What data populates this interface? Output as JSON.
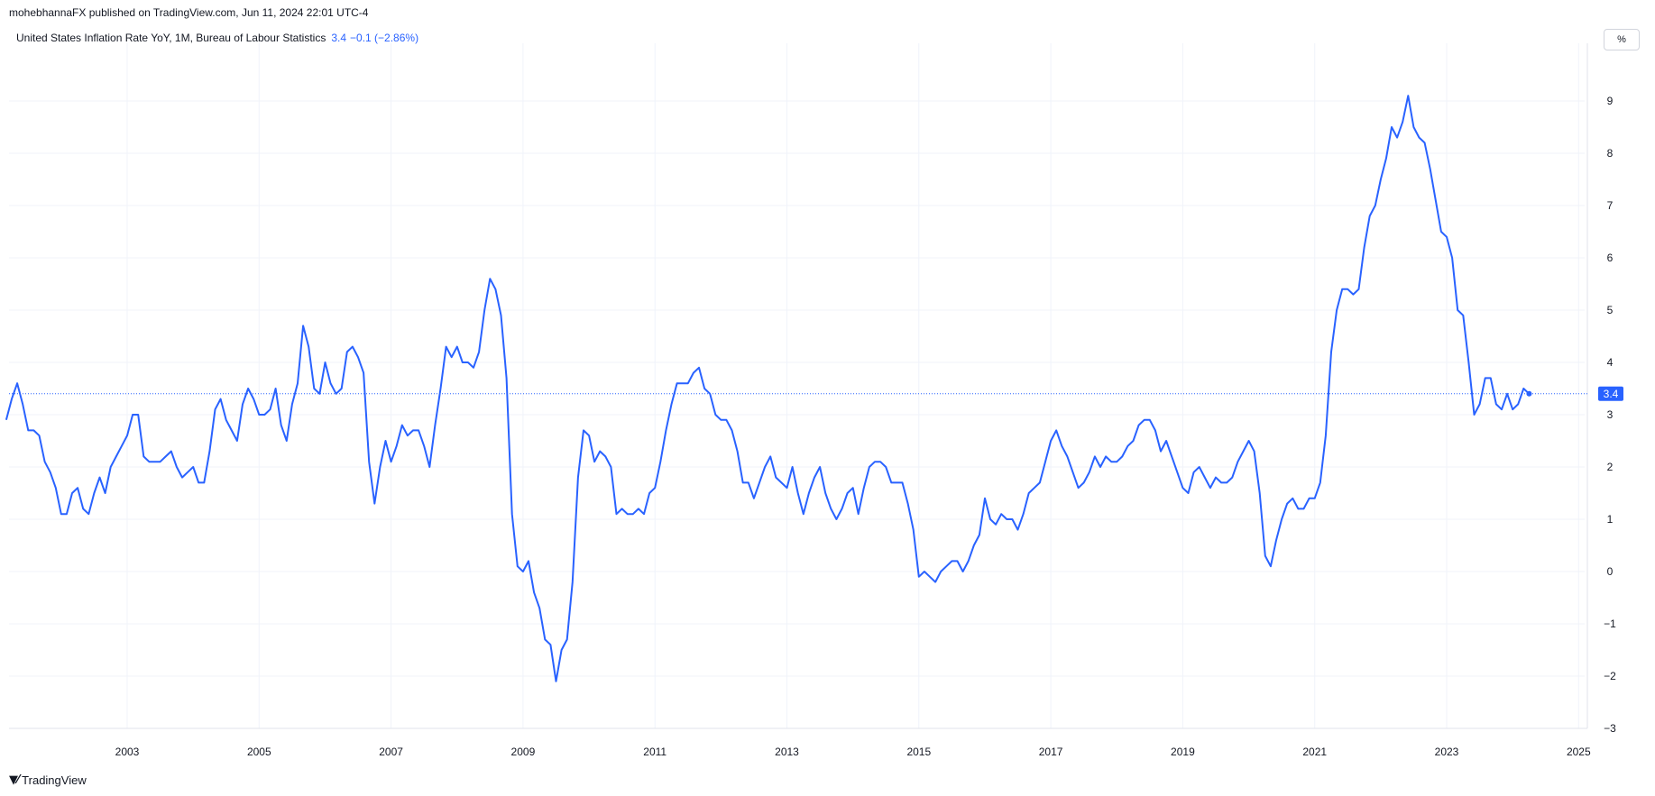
{
  "attribution": "mohebhannaFX published on TradingView.com, Jun 11, 2024 22:01 UTC-4",
  "legend": {
    "title": "United States Inflation Rate YoY, 1M, Bureau of Labour Statistics",
    "value": "3.4",
    "change": "−0.1 (−2.86%)"
  },
  "unit_button": "%",
  "footer": {
    "logo_icon": "tradingview-logo-icon",
    "brand": "TradingView"
  },
  "colors": {
    "line": "#2962ff",
    "grid": "#f0f3fa",
    "last_value_bg": "#2962ff"
  },
  "chart_data": {
    "type": "line",
    "title": "United States Inflation Rate YoY, 1M, Bureau of Labour Statistics",
    "xlabel": "",
    "ylabel": "",
    "y_unit": "%",
    "ylim": [
      -3,
      9
    ],
    "y_ticks": [
      "9",
      "8",
      "7",
      "6",
      "5",
      "4",
      "3",
      "2",
      "1",
      "0",
      "−1",
      "−2",
      "−3"
    ],
    "x_ticks": [
      "2003",
      "2005",
      "2007",
      "2009",
      "2011",
      "2013",
      "2015",
      "2017",
      "2019",
      "2021",
      "2023",
      "2025"
    ],
    "grid": true,
    "last_value_label": "3.4",
    "series": [
      {
        "frequency": "monthly",
        "start": "2001-03",
        "values": [
          2.9,
          3.3,
          3.6,
          3.2,
          2.7,
          2.7,
          2.6,
          2.1,
          1.9,
          1.6,
          1.1,
          1.1,
          1.5,
          1.6,
          1.2,
          1.1,
          1.5,
          1.8,
          1.5,
          2.0,
          2.2,
          2.4,
          2.6,
          3.0,
          3.0,
          2.2,
          2.1,
          2.1,
          2.1,
          2.2,
          2.3,
          2.0,
          1.8,
          1.9,
          2.0,
          1.7,
          1.7,
          2.3,
          3.1,
          3.3,
          2.9,
          2.7,
          2.5,
          3.2,
          3.5,
          3.3,
          3.0,
          3.0,
          3.1,
          3.5,
          2.8,
          2.5,
          3.2,
          3.6,
          4.7,
          4.3,
          3.5,
          3.4,
          4.0,
          3.6,
          3.4,
          3.5,
          4.2,
          4.3,
          4.1,
          3.8,
          2.1,
          1.3,
          2.0,
          2.5,
          2.1,
          2.4,
          2.8,
          2.6,
          2.7,
          2.7,
          2.4,
          2.0,
          2.8,
          3.5,
          4.3,
          4.1,
          4.3,
          4.0,
          4.0,
          3.9,
          4.2,
          5.0,
          5.6,
          5.4,
          4.9,
          3.7,
          1.1,
          0.1,
          0.0,
          0.2,
          -0.4,
          -0.7,
          -1.3,
          -1.4,
          -2.1,
          -1.5,
          -1.3,
          -0.2,
          1.8,
          2.7,
          2.6,
          2.1,
          2.3,
          2.2,
          2.0,
          1.1,
          1.2,
          1.1,
          1.1,
          1.2,
          1.1,
          1.5,
          1.6,
          2.1,
          2.7,
          3.2,
          3.6,
          3.6,
          3.6,
          3.8,
          3.9,
          3.5,
          3.4,
          3.0,
          2.9,
          2.9,
          2.7,
          2.3,
          1.7,
          1.7,
          1.4,
          1.7,
          2.0,
          2.2,
          1.8,
          1.7,
          1.6,
          2.0,
          1.5,
          1.1,
          1.5,
          1.8,
          2.0,
          1.5,
          1.2,
          1.0,
          1.2,
          1.5,
          1.6,
          1.1,
          1.6,
          2.0,
          2.1,
          2.1,
          2.0,
          1.7,
          1.7,
          1.7,
          1.3,
          0.8,
          -0.1,
          0.0,
          -0.1,
          -0.2,
          0.0,
          0.1,
          0.2,
          0.2,
          0.0,
          0.2,
          0.5,
          0.7,
          1.4,
          1.0,
          0.9,
          1.1,
          1.0,
          1.0,
          0.8,
          1.1,
          1.5,
          1.6,
          1.7,
          2.1,
          2.5,
          2.7,
          2.4,
          2.2,
          1.9,
          1.6,
          1.7,
          1.9,
          2.2,
          2.0,
          2.2,
          2.1,
          2.1,
          2.2,
          2.4,
          2.5,
          2.8,
          2.9,
          2.9,
          2.7,
          2.3,
          2.5,
          2.2,
          1.9,
          1.6,
          1.5,
          1.9,
          2.0,
          1.8,
          1.6,
          1.8,
          1.7,
          1.7,
          1.8,
          2.1,
          2.3,
          2.5,
          2.3,
          1.5,
          0.3,
          0.1,
          0.6,
          1.0,
          1.3,
          1.4,
          1.2,
          1.2,
          1.4,
          1.4,
          1.7,
          2.6,
          4.2,
          5.0,
          5.4,
          5.4,
          5.3,
          5.4,
          6.2,
          6.8,
          7.0,
          7.5,
          7.9,
          8.5,
          8.3,
          8.6,
          9.1,
          8.5,
          8.3,
          8.2,
          7.7,
          7.1,
          6.5,
          6.4,
          6.0,
          5.0,
          4.9,
          4.0,
          3.0,
          3.2,
          3.7,
          3.7,
          3.2,
          3.1,
          3.4,
          3.1,
          3.2,
          3.5,
          3.4
        ]
      }
    ]
  }
}
